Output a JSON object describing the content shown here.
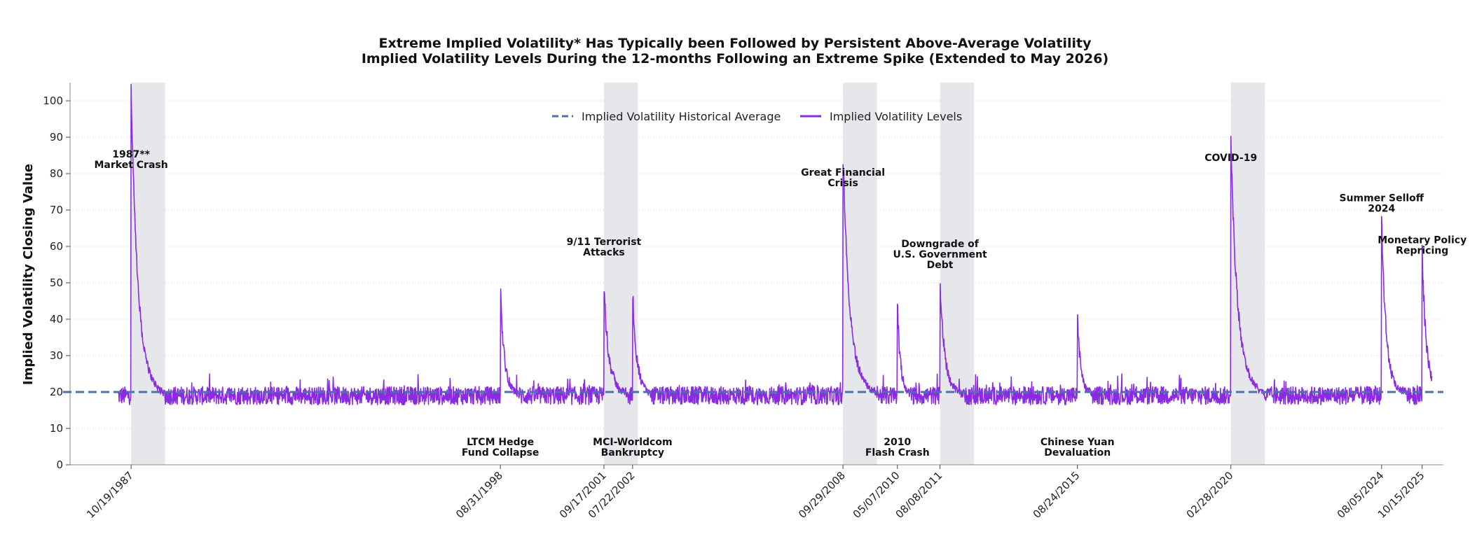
{
  "chart_data": {
    "type": "line",
    "title": "Extreme Implied Volatility* Has Typically been Followed by Persistent Above-Average Volatility",
    "subtitle": "Implied Volatility Levels During the 12-months Following an Extreme Spike (Extended to May 2026)",
    "xlabel": "",
    "ylabel": "Implied Volatility Closing Value",
    "ylim": [
      0,
      105
    ],
    "yticks": [
      0,
      10,
      20,
      30,
      40,
      50,
      60,
      70,
      80,
      90,
      100
    ],
    "grid": true,
    "legend_position": "top-center",
    "x_range": [
      "1986-01-01",
      "2026-05-31"
    ],
    "historical_average": 20,
    "baseline_level": 19,
    "average_color": "#4a72a8",
    "series_color": "#8a2be2",
    "shade_color": "#e5e7ea",
    "legend": [
      {
        "label": "Implied Volatility Historical Average",
        "style": "dashed"
      },
      {
        "label": "Implied Volatility Levels",
        "style": "solid"
      }
    ],
    "xticks": [
      {
        "date": "1987-10-19",
        "label": "10/19/1987"
      },
      {
        "date": "1998-08-31",
        "label": "08/31/1998"
      },
      {
        "date": "2001-09-17",
        "label": "09/17/2001"
      },
      {
        "date": "2002-07-22",
        "label": "07/22/2002"
      },
      {
        "date": "2008-09-29",
        "label": "09/29/2008"
      },
      {
        "date": "2010-05-07",
        "label": "05/07/2010"
      },
      {
        "date": "2011-08-08",
        "label": "08/08/2011"
      },
      {
        "date": "2015-08-24",
        "label": "08/24/2015"
      },
      {
        "date": "2020-02-28",
        "label": "02/28/2020"
      },
      {
        "date": "2024-08-05",
        "label": "08/05/2024"
      },
      {
        "date": "2025-10-15",
        "label": "10/15/2025"
      }
    ],
    "shaded_periods": [
      {
        "start": "1987-10-19",
        "end": "1988-10-19"
      },
      {
        "start": "2001-09-17",
        "end": "2002-09-17"
      },
      {
        "start": "2008-09-29",
        "end": "2009-09-29"
      },
      {
        "start": "2011-08-08",
        "end": "2012-08-08"
      },
      {
        "start": "2020-02-28",
        "end": "2021-02-28"
      }
    ],
    "spikes": [
      {
        "date": "1987-10-19",
        "peak": 98,
        "tail_level": 30,
        "duration_days": 365
      },
      {
        "date": "1998-08-31",
        "peak": 45,
        "tail_level": 26,
        "duration_days": 200
      },
      {
        "date": "2001-09-17",
        "peak": 45,
        "tail_level": 27,
        "duration_days": 250
      },
      {
        "date": "2002-07-22",
        "peak": 45,
        "tail_level": 27,
        "duration_days": 200
      },
      {
        "date": "2008-09-29",
        "peak": 80,
        "tail_level": 30,
        "duration_days": 365
      },
      {
        "date": "2010-05-07",
        "peak": 42,
        "tail_level": 25,
        "duration_days": 150
      },
      {
        "date": "2011-08-08",
        "peak": 48,
        "tail_level": 25,
        "duration_days": 250
      },
      {
        "date": "2015-08-24",
        "peak": 40,
        "tail_level": 25,
        "duration_days": 150
      },
      {
        "date": "2020-02-28",
        "peak": 83,
        "tail_level": 30,
        "duration_days": 365
      },
      {
        "date": "2024-08-05",
        "peak": 65,
        "tail_level": 25,
        "duration_days": 250
      },
      {
        "date": "2025-10-15",
        "peak": 55,
        "tail_level": 27,
        "duration_days": 220
      }
    ],
    "annotations": [
      {
        "lines": [
          "1987**",
          "Market Crash"
        ],
        "date": "1987-10-19",
        "y": 81.5
      },
      {
        "lines": [
          "LTCM Hedge",
          "Fund Collapse"
        ],
        "date": "1998-08-31",
        "y": 2.5
      },
      {
        "lines": [
          "9/11 Terrorist",
          "Attacks"
        ],
        "date": "2001-09-17",
        "y": 57.5
      },
      {
        "lines": [
          "MCI-Worldcom",
          "Bankruptcy"
        ],
        "date": "2002-07-22",
        "y": 2.5
      },
      {
        "lines": [
          "Great Financial",
          "Crisis"
        ],
        "date": "2008-09-29",
        "y": 76.5
      },
      {
        "lines": [
          "2010",
          "Flash Crash"
        ],
        "date": "2010-05-07",
        "y": 2.5
      },
      {
        "lines": [
          "Downgrade of",
          "U.S. Government",
          "Debt"
        ],
        "date": "2011-08-08",
        "y": 54
      },
      {
        "lines": [
          "Chinese Yuan",
          "Devaluation"
        ],
        "date": "2015-08-24",
        "y": 2.5
      },
      {
        "lines": [
          "COVID-19"
        ],
        "date": "2020-02-28",
        "y": 83.5
      },
      {
        "lines": [
          "Summer Selloff",
          "2024"
        ],
        "date": "2024-08-05",
        "y": 69.5
      },
      {
        "lines": [
          "Monetary Policy",
          "Repricing"
        ],
        "date": "2025-10-15",
        "y": 58
      }
    ]
  }
}
